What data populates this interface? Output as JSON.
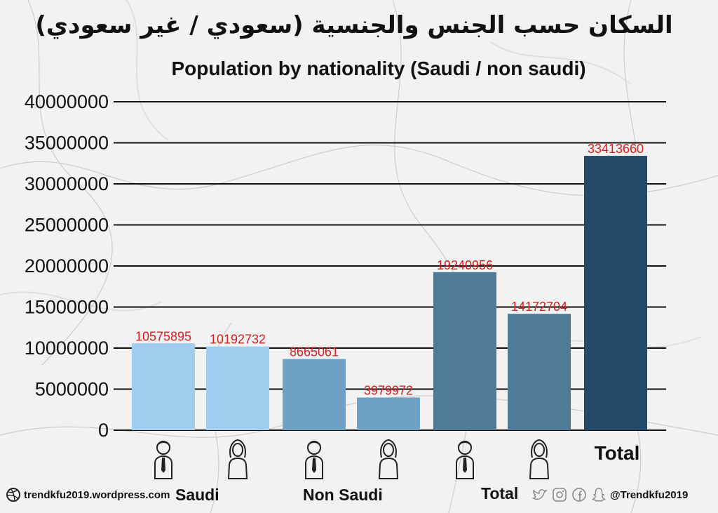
{
  "titles": {
    "arabic": "السكان حسب الجنس والجنسية (سعودي / غير سعودي)",
    "english": "Population by nationality (Saudi / non saudi)"
  },
  "chart_data": {
    "type": "bar",
    "title": "Population by nationality (Saudi / non saudi)",
    "ylim": [
      0,
      40000000
    ],
    "yticks": [
      "0",
      "5000000",
      "10000000",
      "15000000",
      "20000000",
      "25000000",
      "30000000",
      "35000000",
      "40000000"
    ],
    "yvalues": [
      0,
      5000000,
      10000000,
      15000000,
      20000000,
      25000000,
      30000000,
      35000000,
      40000000
    ],
    "grid": true,
    "bars": [
      {
        "value": 10575895,
        "label": "10575895",
        "gender": "male",
        "group": "Saudi",
        "color": "#9fcdee"
      },
      {
        "value": 10192732,
        "label": "10192732",
        "gender": "female",
        "group": "Saudi",
        "color": "#9fcdee"
      },
      {
        "value": 8665061,
        "label": "8665061",
        "gender": "male",
        "group": "Non Saudi",
        "color": "#6fa1c4"
      },
      {
        "value": 3979972,
        "label": "3979972",
        "gender": "female",
        "group": "Non Saudi",
        "color": "#6fa1c4"
      },
      {
        "value": 19240956,
        "label": "19240956",
        "gender": "male",
        "group": "Total",
        "color": "#4f7a98"
      },
      {
        "value": 14172704,
        "label": "14172704",
        "gender": "female",
        "group": "Total",
        "color": "#4f7a98"
      },
      {
        "value": 33413660,
        "label": "33413660",
        "gender": "total",
        "group": "Total",
        "color": "#234a68"
      }
    ],
    "groups": [
      "Saudi",
      "Non Saudi",
      "Total"
    ],
    "total_category_label": "Total"
  },
  "footer": {
    "website": "trendkfu2019.wordpress.com",
    "handle": "@Trendkfu2019",
    "left_icon": "dribbble-icon",
    "social_icons": [
      "twitter-icon",
      "instagram-icon",
      "facebook-icon",
      "snapchat-icon"
    ]
  }
}
